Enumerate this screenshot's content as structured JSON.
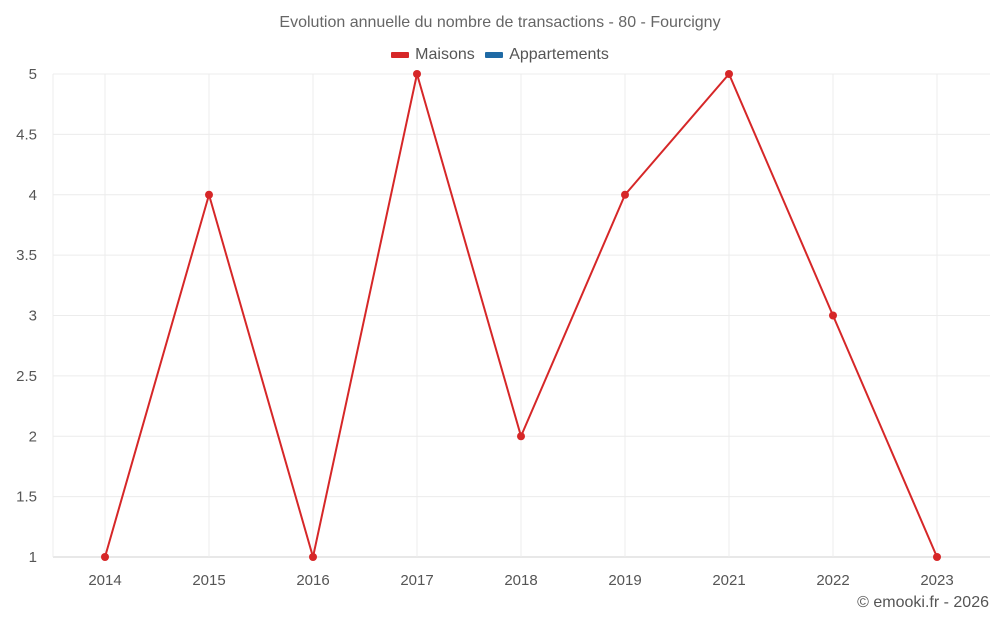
{
  "chart_data": {
    "type": "line",
    "title": "Evolution annuelle du nombre de transactions - 80 - Fourcigny",
    "categories": [
      "2014",
      "2015",
      "2016",
      "2017",
      "2018",
      "2019",
      "2021",
      "2022",
      "2023"
    ],
    "series": [
      {
        "name": "Maisons",
        "color": "#d62728",
        "values": [
          1,
          4,
          1,
          5,
          2,
          4,
          5,
          3,
          1
        ]
      },
      {
        "name": "Appartements",
        "color": "#1f6aa5",
        "values": []
      }
    ],
    "xlabel": "",
    "ylabel": "",
    "ylim": [
      1,
      5
    ],
    "yticks": [
      "1",
      "1.5",
      "2",
      "2.5",
      "3",
      "3.5",
      "4",
      "4.5",
      "5"
    ],
    "grid": true,
    "legend_position": "top"
  },
  "header": {
    "title": "Evolution annuelle du nombre de transactions - 80 - Fourcigny"
  },
  "legend": [
    {
      "label": "Maisons",
      "color": "#d62728"
    },
    {
      "label": "Appartements",
      "color": "#1f6aa5"
    }
  ],
  "footer": {
    "credit": "© emooki.fr - 2026"
  }
}
